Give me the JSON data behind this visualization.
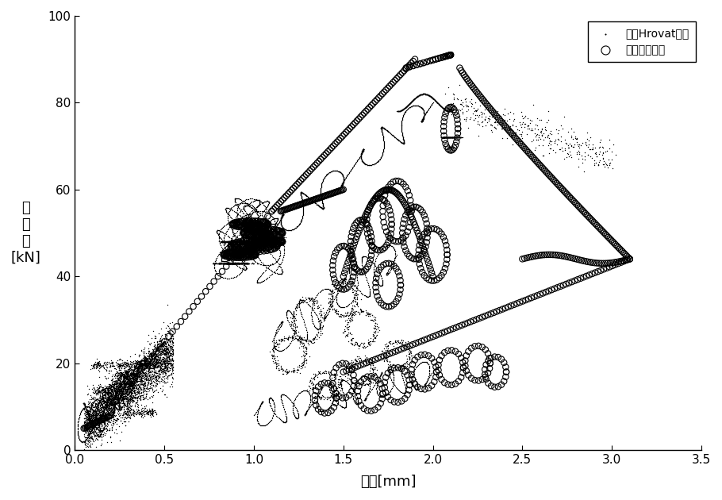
{
  "title": "",
  "xlabel": "位移[mm]",
  "ylabel": "控\n制\n力\n[kN]",
  "xlim": [
    0.0,
    3.5
  ],
  "ylim": [
    0,
    100
  ],
  "xticks": [
    0.0,
    0.5,
    1.0,
    1.5,
    2.0,
    2.5,
    3.0,
    3.5
  ],
  "yticks": [
    0,
    20,
    40,
    60,
    80,
    100
  ],
  "legend_labels": [
    "限界Hrovat控制",
    "主动最优控制"
  ],
  "dot_color": "black",
  "circle_color": "black",
  "bg_color": "white",
  "dot_size": 4,
  "circle_size": 28
}
